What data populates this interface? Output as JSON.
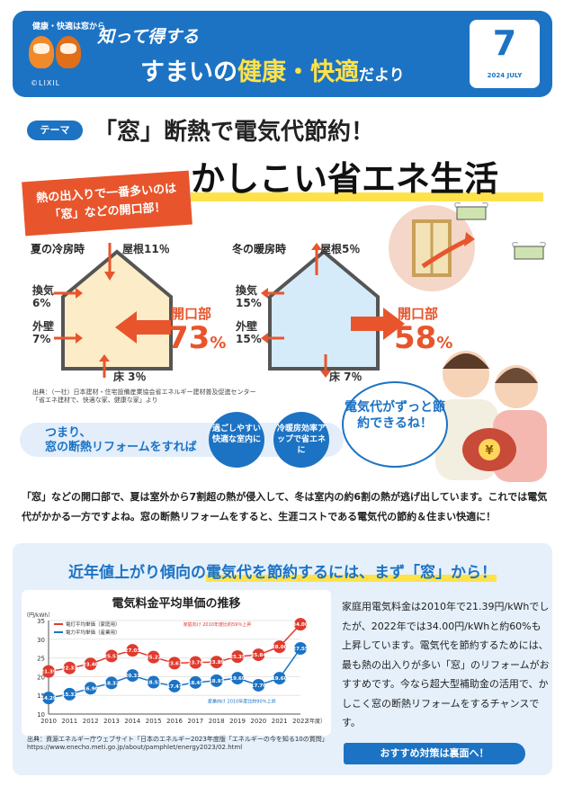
{
  "header": {
    "brand_tag": "健康・快適は窓から",
    "logo": "©LIXIL",
    "subtitle": "知って得する",
    "title_pre": "すまいの",
    "title_hl": "健康・快適",
    "title_post": "だより",
    "issue_number": "7",
    "issue_date": "2024 JULY"
  },
  "theme": {
    "badge": "テーマ",
    "title": "「窓」断熱で電気代節約！",
    "headline": "かしこい省エネ生活",
    "callout_line1": "熱の出入りで一番多いのは",
    "callout_line2": "「窓」などの開口部！"
  },
  "summer": {
    "label": "夏の冷房時",
    "roof": "屋根11％",
    "vent_label": "換気",
    "vent_pct": "6%",
    "wall_label": "外壁",
    "wall_pct": "7%",
    "floor": "床 3％",
    "opening_label": "開口部",
    "opening_pct": "73",
    "pct_sign": "%"
  },
  "winter": {
    "label": "冬の暖房時",
    "roof": "屋根5％",
    "vent_label": "換気",
    "vent_pct": "15%",
    "wall_label": "外壁",
    "wall_pct": "15%",
    "floor": "床 7％",
    "opening_label": "開口部",
    "opening_pct": "58",
    "pct_sign": "%"
  },
  "diagram_source": {
    "line1": "出典：（一社）日本建材・住宅設備産業協会省エネルギー建材普及促進センター",
    "line2": "「省エネ建材で、快適な家、健康な家」より"
  },
  "benefit": {
    "line1": "つまり、",
    "line2": "窓の断熱リフォームをすれば",
    "circle1": "過ごしやすい快適な室内に",
    "circle2": "冷暖房効率アップで省エネに",
    "speech": "電気代がずっと節約できるね！"
  },
  "paragraph": "「窓」などの開口部で、夏は室外から7割超の熱が侵入して、冬は室内の約6割の熱が逃げ出しています。これでは電気代がかかる一方ですよね。窓の断熱リフォームをすると、生涯コストである電気代の節約＆住まい快適に！",
  "lower": {
    "title_pre": "近年値上がり傾向の",
    "title_hl": "電気代を節約するには、まず「窓」から！",
    "chart_heading": "電気料金平均単価の推移",
    "side_text": "家庭用電気料金は2010年で21.39円/kWhでしたが、2022年では34.00円/kWhと約60%も上昇しています。電気代を節約するためには、最も熱の出入りが多い「窓」のリフォームがおすすめです。今なら超大型補助金の活用で、かしこく窓の断熱リフォームをするチャンスです。",
    "source_line1": "出典：資源エネルギー庁ウェブサイト「日本のエネルギー2023年度版「エネルギーの今を知る10の質問」",
    "source_line2": "https://www.enecho.meti.go.jp/about/pamphlet/energy2023/02.html",
    "cta": "おすすめ対策は裏面へ！"
  },
  "chart_data": {
    "type": "line",
    "title": "電気料金平均単価の推移",
    "xlabel": "（年度）",
    "ylabel": "（円/kWh）",
    "x": [
      "2010",
      "2011",
      "2012",
      "2013",
      "2014",
      "2015",
      "2016",
      "2017",
      "2018",
      "2019",
      "2020",
      "2021",
      "2022"
    ],
    "ylim": [
      10,
      35
    ],
    "series": [
      {
        "name": "電灯平均単価（家庭用）",
        "color": "#e03a2e",
        "values": [
          21.39,
          22.33,
          23.4,
          25.51,
          27.03,
          25.22,
          23.61,
          23.78,
          23.89,
          25.35,
          25.84,
          28.0,
          34.0
        ]
      },
      {
        "name": "電力平均単価（産業用）",
        "color": "#1c73c4",
        "values": [
          14.29,
          15.32,
          16.9,
          18.32,
          20.31,
          18.53,
          17.47,
          18.45,
          18.93,
          19.6,
          17.7,
          19.6,
          27.55
        ]
      }
    ],
    "annotations": [
      "家庭向け 2010年度比約59％上昇",
      "産業向け 2010年度比約90％上昇"
    ]
  }
}
